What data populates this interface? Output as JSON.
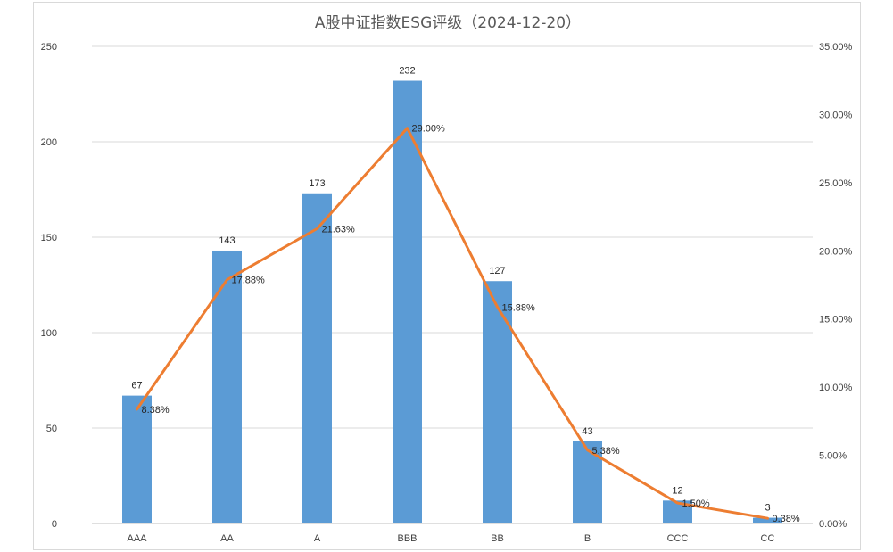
{
  "chart_data": {
    "type": "bar",
    "title": "A股中证指数ESG评级（2024-12-20）",
    "categories": [
      "AAA",
      "AA",
      "A",
      "BBB",
      "BB",
      "B",
      "CCC",
      "CC"
    ],
    "series": [
      {
        "type": "bar",
        "axis": "left",
        "values": [
          67,
          143,
          173,
          232,
          127,
          43,
          12,
          3
        ],
        "labels": [
          "67",
          "143",
          "173",
          "232",
          "127",
          "43",
          "12",
          "3"
        ],
        "color": "#5b9bd5"
      },
      {
        "type": "line",
        "axis": "right",
        "values": [
          8.38,
          17.88,
          21.63,
          29.0,
          15.88,
          5.38,
          1.5,
          0.38
        ],
        "labels": [
          "8.38%",
          "17.88%",
          "21.63%",
          "29.00%",
          "15.88%",
          "5.38%",
          "1.50%",
          "0.38%"
        ],
        "color": "#ed7d31"
      }
    ],
    "y_left": {
      "min": 0,
      "max": 250,
      "ticks": [
        "0",
        "50",
        "100",
        "150",
        "200",
        "250"
      ]
    },
    "y_right": {
      "min": 0,
      "max": 35,
      "ticks": [
        "0.00%",
        "5.00%",
        "10.00%",
        "15.00%",
        "20.00%",
        "25.00%",
        "30.00%",
        "35.00%"
      ]
    },
    "grid": true,
    "legend": "none"
  }
}
